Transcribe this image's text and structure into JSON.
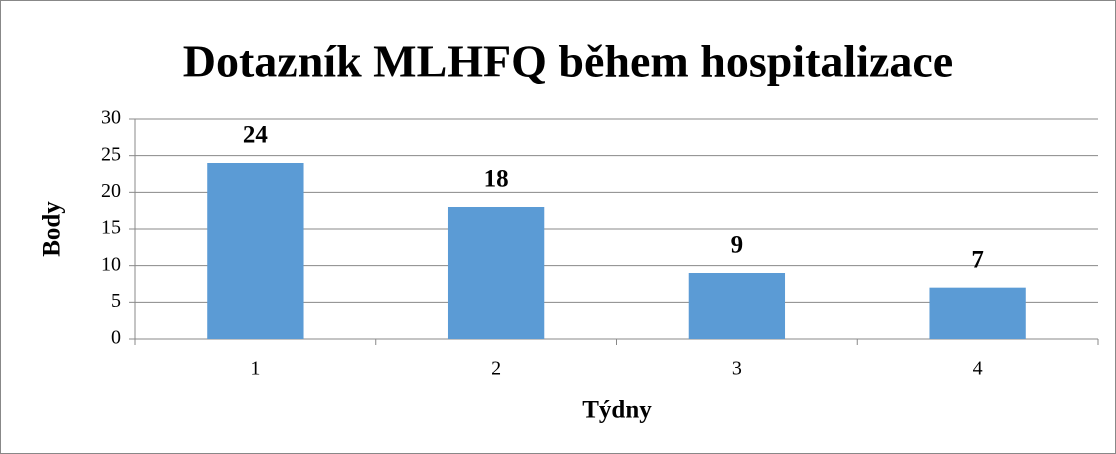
{
  "chart_data": {
    "type": "bar",
    "title": "Dotazník MLHFQ během hospitalizace",
    "xlabel": "Týdny",
    "ylabel": "Body",
    "categories": [
      "1",
      "2",
      "3",
      "4"
    ],
    "values": [
      24,
      18,
      9,
      7
    ],
    "color": "#5b9bd5",
    "ylim": [
      0,
      30
    ],
    "yticks": [
      0,
      5,
      10,
      15,
      20,
      25,
      30
    ],
    "grid": true
  }
}
